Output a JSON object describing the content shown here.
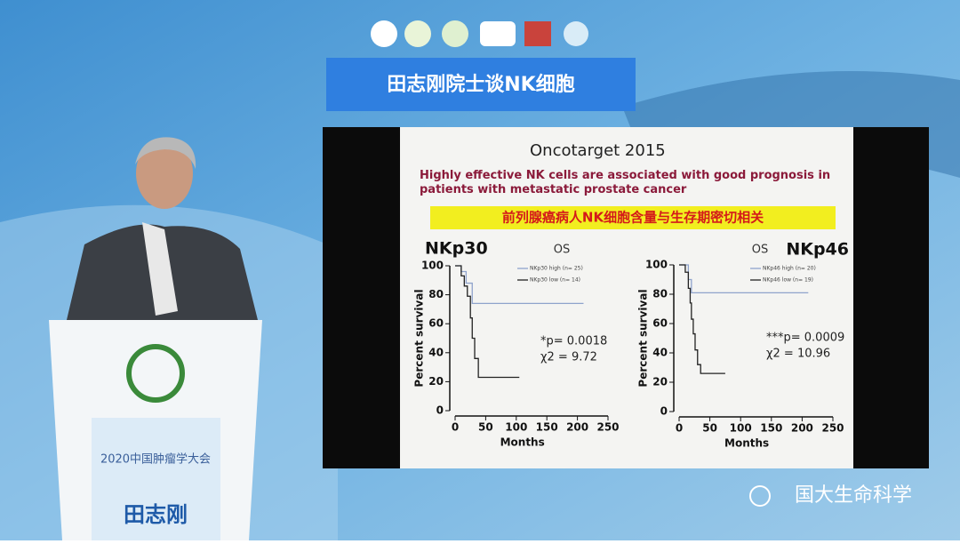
{
  "banner": {
    "title": "田志刚院士谈NK细胞"
  },
  "slide": {
    "journal": "Oncotarget 2015",
    "headline": "Highly effective NK cells are associated with good prognosis in patients with metastatic prostate cancer",
    "highlight": "前列腺癌病人NK细胞含量与生存期密切相关"
  },
  "chart_data": [
    {
      "type": "line",
      "drawstyle": "steps-post",
      "title": "NKp30",
      "subtitle": "OS",
      "xlabel": "Months",
      "ylabel": "Percent survival",
      "xlim": [
        0,
        250
      ],
      "ylim": [
        0,
        100
      ],
      "xticks": [
        0,
        50,
        100,
        150,
        200,
        250
      ],
      "yticks": [
        0,
        20,
        40,
        60,
        80,
        100
      ],
      "series": [
        {
          "name": "NKp30 high (n= 25)",
          "color": "#8fa3cc",
          "x": [
            0,
            10,
            18,
            28,
            210
          ],
          "values": [
            100,
            96,
            88,
            74,
            74
          ]
        },
        {
          "name": "NKp30 low (n= 14)",
          "color": "#222222",
          "x": [
            0,
            10,
            15,
            20,
            25,
            28,
            32,
            38,
            105
          ],
          "values": [
            100,
            93,
            86,
            79,
            64,
            50,
            36,
            23,
            23
          ]
        }
      ],
      "annotations": [
        "*p= 0.0018",
        "χ2 = 9.72"
      ]
    },
    {
      "type": "line",
      "drawstyle": "steps-post",
      "title": "NKp46",
      "subtitle": "OS",
      "xlabel": "Months",
      "ylabel": "Percent survival",
      "xlim": [
        0,
        250
      ],
      "ylim": [
        0,
        100
      ],
      "xticks": [
        0,
        50,
        100,
        150,
        200,
        250
      ],
      "yticks": [
        0,
        20,
        40,
        60,
        80,
        100
      ],
      "series": [
        {
          "name": "NKp46 high (n= 20)",
          "color": "#8fa3cc",
          "x": [
            0,
            15,
            20,
            210
          ],
          "values": [
            100,
            90,
            81,
            81
          ]
        },
        {
          "name": "NKp46 low (n= 19)",
          "color": "#222222",
          "x": [
            0,
            10,
            15,
            18,
            20,
            23,
            26,
            30,
            35,
            75
          ],
          "values": [
            100,
            95,
            84,
            74,
            63,
            53,
            42,
            32,
            26,
            26
          ]
        }
      ],
      "annotations": [
        "***p= 0.0009",
        "χ2 = 10.96"
      ]
    }
  ],
  "podium": {
    "event": "2020中国肿瘤学大会",
    "speaker": "田志刚"
  },
  "watermark": "国大生命科学"
}
